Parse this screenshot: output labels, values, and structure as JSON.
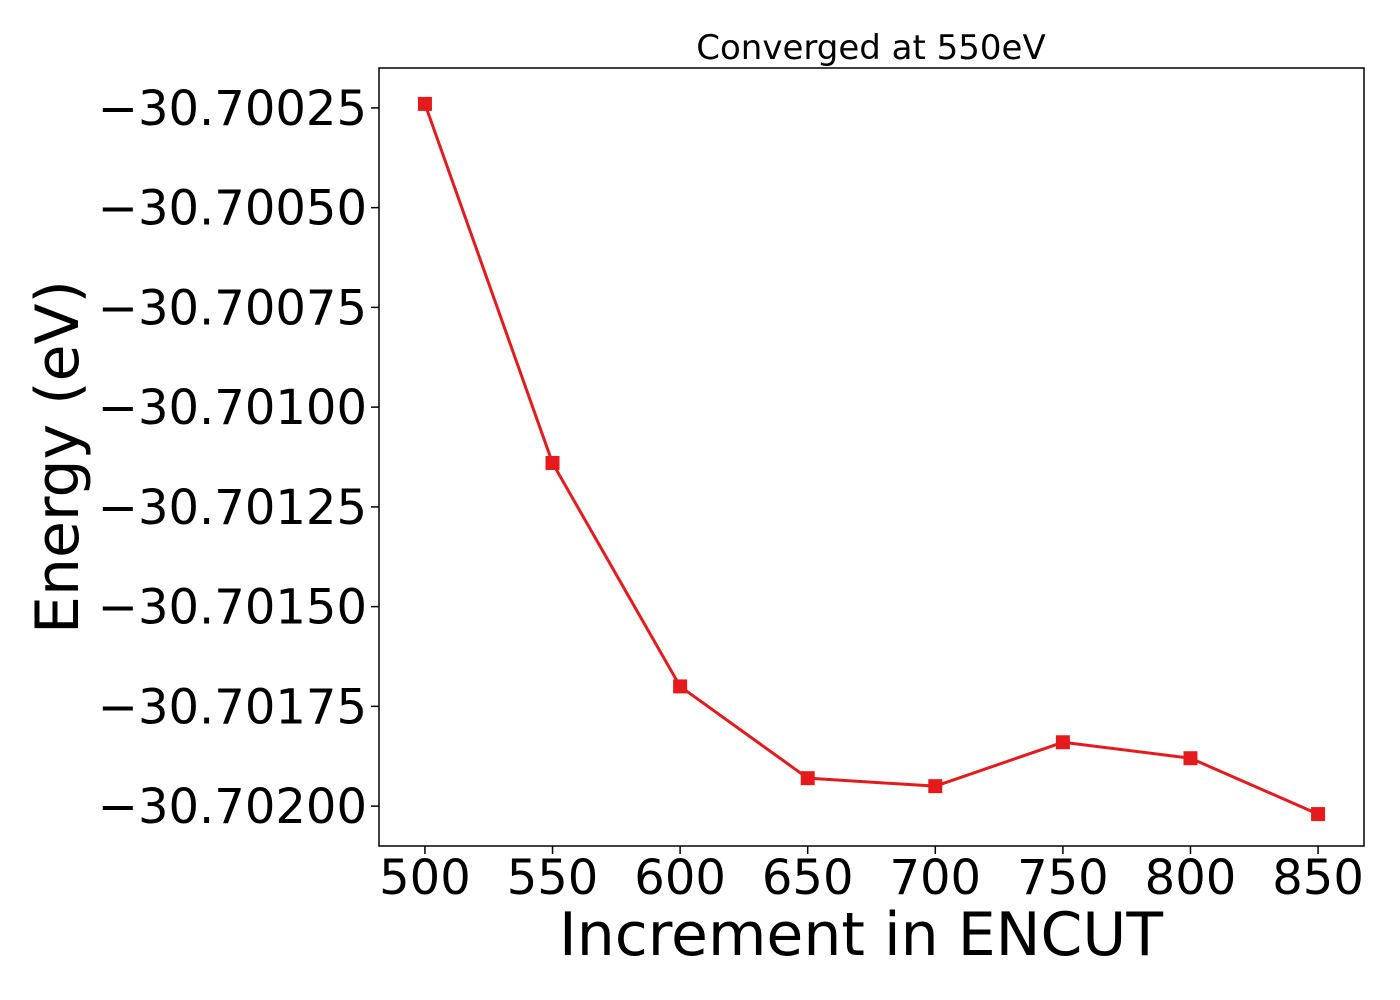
{
  "chart_data": {
    "type": "line",
    "title": "Converged at 550eV",
    "xlabel": "Increment in ENCUT",
    "ylabel": "Energy (eV)",
    "x": [
      500,
      550,
      600,
      650,
      700,
      750,
      800,
      850
    ],
    "series": [
      {
        "values": [
          -30.70024,
          -30.70114,
          -30.7017,
          -30.70193,
          -30.70195,
          -30.70184,
          -30.70188,
          -30.70202
        ],
        "color": "#e41a1c",
        "marker": "square"
      }
    ],
    "xlim": [
      482,
      868
    ],
    "ylim": [
      -30.7021,
      -30.70015
    ],
    "xticks": [
      500,
      550,
      600,
      650,
      700,
      750,
      800,
      850
    ],
    "xtick_labels": [
      "500",
      "550",
      "600",
      "650",
      "700",
      "750",
      "800",
      "850"
    ],
    "yticks": [
      -30.70025,
      -30.7005,
      -30.70075,
      -30.701,
      -30.70125,
      -30.7015,
      -30.70175,
      -30.702
    ],
    "ytick_labels": [
      "−30.70025",
      "−30.70050",
      "−30.70075",
      "−30.70100",
      "−30.70125",
      "−30.70150",
      "−30.70175",
      "−30.70200"
    ],
    "grid": false,
    "legend": "none"
  }
}
